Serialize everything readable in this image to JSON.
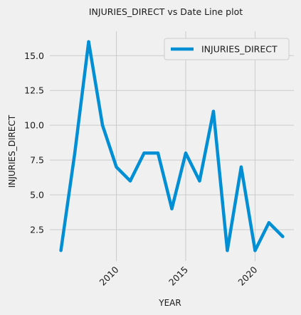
{
  "chart_data": {
    "type": "line",
    "title": "INJURIES_DIRECT vs Date Line plot",
    "xlabel": "YEAR",
    "ylabel": "INJURIES_DIRECT",
    "x": [
      2006,
      2007,
      2008,
      2009,
      2010,
      2011,
      2012,
      2013,
      2014,
      2015,
      2016,
      2017,
      2018,
      2019,
      2020,
      2021,
      2022
    ],
    "series": [
      {
        "name": "INJURIES_DIRECT",
        "values": [
          1,
          8,
          16,
          10,
          7,
          6,
          8,
          8,
          4,
          8,
          6,
          11,
          1,
          7,
          1,
          3,
          2
        ],
        "color": "#008fd5"
      }
    ],
    "xticks": [
      2010,
      2015,
      2020
    ],
    "xtick_labels": [
      "2010",
      "2015",
      "2020"
    ],
    "yticks": [
      2.5,
      5.0,
      7.5,
      10.0,
      12.5,
      15.0
    ],
    "ytick_labels": [
      "2.5",
      "5.0",
      "7.5",
      "10.0",
      "12.5",
      "15.0"
    ],
    "xlim": [
      2005.2,
      2022.8
    ],
    "ylim": [
      0.25,
      16.75
    ],
    "grid": true,
    "legend_position": "top-right",
    "colors": {
      "background": "#f0f0f0",
      "grid": "#cbcbcb",
      "text": "#1a1a1a"
    }
  }
}
